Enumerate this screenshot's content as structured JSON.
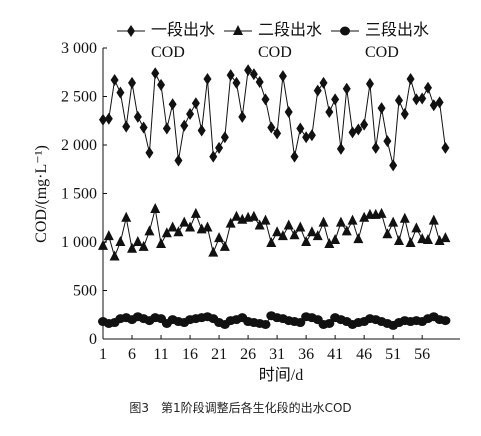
{
  "chart_data": {
    "type": "line",
    "xlabel": "时间/d",
    "ylabel": "COD/(mg·L⁻¹)",
    "caption": "图3　第1阶段调整后各生化段的出水COD",
    "x": [
      1,
      2,
      3,
      4,
      5,
      6,
      7,
      8,
      9,
      10,
      11,
      12,
      13,
      14,
      15,
      16,
      17,
      18,
      19,
      20,
      21,
      22,
      23,
      24,
      25,
      26,
      27,
      28,
      29,
      30,
      31,
      32,
      33,
      34,
      35,
      36,
      37,
      38,
      39,
      40,
      41,
      42,
      43,
      44,
      45,
      46,
      47,
      48,
      49,
      50,
      51,
      52,
      53,
      54,
      55,
      56,
      57,
      58,
      59,
      60
    ],
    "series": [
      {
        "name": "一段出水 COD",
        "color": "#111111",
        "marker": "diamond",
        "values": [
          2260,
          2270,
          2670,
          2540,
          2190,
          2640,
          2290,
          2180,
          1920,
          2740,
          2620,
          2170,
          2420,
          1840,
          2200,
          2320,
          2430,
          2150,
          2680,
          1880,
          1970,
          2080,
          2720,
          2640,
          2290,
          2770,
          2730,
          2650,
          2470,
          2180,
          2120,
          2710,
          2340,
          1880,
          2170,
          2080,
          2100,
          2560,
          2640,
          2340,
          2470,
          1960,
          2580,
          2130,
          2160,
          2210,
          2630,
          1970,
          2380,
          2040,
          1790,
          2460,
          2320,
          2680,
          2470,
          2480,
          2590,
          2410,
          2440,
          1970
        ]
      },
      {
        "name": "二段出水 COD",
        "color": "#111111",
        "marker": "triangle",
        "values": [
          960,
          1060,
          850,
          1000,
          1250,
          930,
          1000,
          950,
          1110,
          1340,
          980,
          1090,
          1150,
          1100,
          1200,
          1150,
          1290,
          1130,
          1150,
          890,
          1040,
          950,
          1190,
          1260,
          1230,
          1250,
          1260,
          1170,
          1220,
          990,
          1100,
          1060,
          1170,
          1070,
          1150,
          1000,
          1100,
          1060,
          1200,
          980,
          1020,
          1200,
          1110,
          1220,
          1030,
          1250,
          1280,
          1280,
          1290,
          1080,
          1200,
          1010,
          1240,
          990,
          1140,
          1030,
          1020,
          1220,
          1010,
          1040
        ]
      },
      {
        "name": "三段出水 COD",
        "color": "#111111",
        "marker": "circle",
        "values": [
          180,
          160,
          170,
          210,
          220,
          200,
          230,
          210,
          190,
          220,
          210,
          160,
          200,
          180,
          170,
          200,
          210,
          220,
          230,
          210,
          170,
          150,
          190,
          200,
          220,
          180,
          170,
          160,
          150,
          240,
          220,
          210,
          190,
          180,
          170,
          230,
          220,
          200,
          150,
          160,
          220,
          200,
          180,
          150,
          170,
          180,
          210,
          200,
          180,
          160,
          140,
          170,
          190,
          180,
          190,
          180,
          210,
          230,
          200,
          190
        ]
      }
    ],
    "xlim": [
      1,
      62
    ],
    "xticks": [
      1,
      6,
      11,
      16,
      21,
      26,
      31,
      36,
      41,
      46,
      51,
      56
    ],
    "ylim": [
      0,
      3000
    ],
    "yticks": [
      0,
      500,
      {
        "value": 1000,
        "label": "1 000"
      },
      {
        "value": 1500,
        "label": "1 500"
      },
      {
        "value": 2000,
        "label": "2 000"
      },
      {
        "value": 2500,
        "label": "2 500"
      },
      {
        "value": 3000,
        "label": "3 000"
      }
    ],
    "legend": "top"
  }
}
